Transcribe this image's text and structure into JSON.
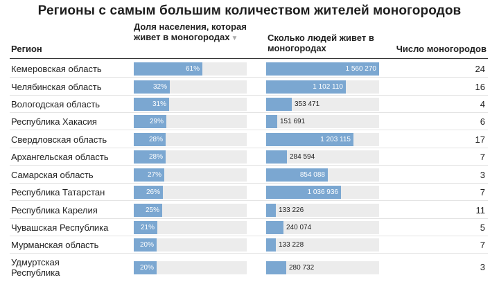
{
  "title": "Регионы с самым большим количеством жителей моногородов",
  "headers": {
    "region": "Регион",
    "share": "Доля населения, которая живет в моногородах",
    "share_sort_icon": "▼",
    "people": "Сколько людей живет в моногородах",
    "count": "Число моногородов"
  },
  "colors": {
    "bar": "#7ba7d1",
    "track": "#ececec"
  },
  "chart_data": {
    "type": "table",
    "title": "Регионы с самым большим количеством жителей моногородов",
    "columns": [
      "Регион",
      "Доля населения, которая живет в моногородах",
      "Сколько людей живет в моногородах",
      "Число моногородов"
    ],
    "share_max": 100,
    "people_max": 1560270,
    "rows": [
      {
        "region": "Кемеровская область",
        "share": 61,
        "share_label": "61%",
        "people": 1560270,
        "people_label": "1 560 270",
        "count": "24"
      },
      {
        "region": "Челябинская область",
        "share": 32,
        "share_label": "32%",
        "people": 1102110,
        "people_label": "1 102 110",
        "count": "16"
      },
      {
        "region": "Вологодская область",
        "share": 31,
        "share_label": "31%",
        "people": 353471,
        "people_label": "353 471",
        "count": "4"
      },
      {
        "region": "Республика Хакасия",
        "share": 29,
        "share_label": "29%",
        "people": 151691,
        "people_label": "151 691",
        "count": "6"
      },
      {
        "region": "Свердловская область",
        "share": 28,
        "share_label": "28%",
        "people": 1203115,
        "people_label": "1 203 115",
        "count": "17"
      },
      {
        "region": "Архангельская область",
        "share": 28,
        "share_label": "28%",
        "people": 284594,
        "people_label": "284 594",
        "count": "7"
      },
      {
        "region": "Самарская область",
        "share": 27,
        "share_label": "27%",
        "people": 854088,
        "people_label": "854 088",
        "count": "3"
      },
      {
        "region": "Республика Татарстан",
        "share": 26,
        "share_label": "26%",
        "people": 1036936,
        "people_label": "1 036 936",
        "count": "7"
      },
      {
        "region": "Республика Карелия",
        "share": 25,
        "share_label": "25%",
        "people": 133226,
        "people_label": "133 226",
        "count": "11"
      },
      {
        "region": "Чувашская Республика",
        "share": 21,
        "share_label": "21%",
        "people": 240074,
        "people_label": "240 074",
        "count": "5"
      },
      {
        "region": "Мурманская область",
        "share": 20,
        "share_label": "20%",
        "people": 133228,
        "people_label": "133 228",
        "count": "7"
      },
      {
        "region": "Удмуртская Республика",
        "share": 20,
        "share_label": "20%",
        "people": 280732,
        "people_label": "280 732",
        "count": "3"
      }
    ]
  }
}
